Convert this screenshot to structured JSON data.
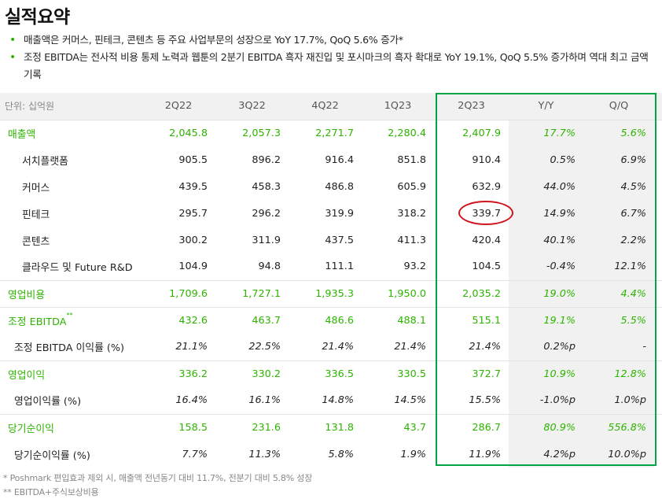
{
  "title": "실적요약",
  "bullets": [
    "매출액은 커머스, 핀테크, 콘텐츠 등 주요 사업부문의 성장으로 YoY 17.7%, QoQ 5.6% 증가*",
    "조정 EBITDA는 전사적 비용 통제 노력과 웹툰의 2분기 EBITDA 흑자 재진입 및 포시마크의 흑자 확대로 YoY 19.1%, QoQ 5.5% 증가하며 역대 최고 금액 기록"
  ],
  "table": {
    "unit": "단위: 십억원",
    "headers": [
      "2Q22",
      "3Q22",
      "4Q22",
      "1Q23",
      "2Q23",
      "Y/Y",
      "Q/Q"
    ],
    "rows": [
      {
        "label": "매출액",
        "sup": "",
        "cells": [
          "2,045.8",
          "2,057.3",
          "2,271.7",
          "2,280.4",
          "2,407.9",
          "17.7%",
          "5.6%"
        ]
      },
      {
        "label": "서치플랫폼",
        "sup": "",
        "cells": [
          "905.5",
          "896.2",
          "916.4",
          "851.8",
          "910.4",
          "0.5%",
          "6.9%"
        ]
      },
      {
        "label": "커머스",
        "sup": "",
        "cells": [
          "439.5",
          "458.3",
          "486.8",
          "605.9",
          "632.9",
          "44.0%",
          "4.5%"
        ]
      },
      {
        "label": "핀테크",
        "sup": "",
        "cells": [
          "295.7",
          "296.2",
          "319.9",
          "318.2",
          "339.7",
          "14.9%",
          "6.7%"
        ]
      },
      {
        "label": "콘텐츠",
        "sup": "",
        "cells": [
          "300.2",
          "311.9",
          "437.5",
          "411.3",
          "420.4",
          "40.1%",
          "2.2%"
        ]
      },
      {
        "label": "클라우드 및 Future R&D",
        "sup": "",
        "cells": [
          "104.9",
          "94.8",
          "111.1",
          "93.2",
          "104.5",
          "-0.4%",
          "12.1%"
        ]
      },
      {
        "label": "영업비용",
        "sup": "",
        "cells": [
          "1,709.6",
          "1,727.1",
          "1,935.3",
          "1,950.0",
          "2,035.2",
          "19.0%",
          "4.4%"
        ]
      },
      {
        "label": "조정 EBITDA",
        "sup": "**",
        "cells": [
          "432.6",
          "463.7",
          "486.6",
          "488.1",
          "515.1",
          "19.1%",
          "5.5%"
        ]
      },
      {
        "label": "조정 EBITDA 이익률 (%)",
        "sup": "",
        "cells": [
          "21.1%",
          "22.5%",
          "21.4%",
          "21.4%",
          "21.4%",
          "0.2%p",
          "-"
        ]
      },
      {
        "label": "영업이익",
        "sup": "",
        "cells": [
          "336.2",
          "330.2",
          "336.5",
          "330.5",
          "372.7",
          "10.9%",
          "12.8%"
        ]
      },
      {
        "label": "영업이익률 (%)",
        "sup": "",
        "cells": [
          "16.4%",
          "16.1%",
          "14.8%",
          "14.5%",
          "15.5%",
          "-1.0%p",
          "1.0%p"
        ]
      },
      {
        "label": "당기순이익",
        "sup": "",
        "cells": [
          "158.5",
          "231.6",
          "131.8",
          "43.7",
          "286.7",
          "80.9%",
          "556.8%"
        ]
      },
      {
        "label": "당기순이익률 (%)",
        "sup": "",
        "cells": [
          "7.7%",
          "11.3%",
          "5.8%",
          "1.9%",
          "11.9%",
          "4.2%p",
          "10.0%p"
        ]
      }
    ]
  },
  "notes": [
    "* Poshmark 편입효과 제외 시, 매출액 전년동기 대비 11.7%, 전분기 대비 5.8% 성장",
    "** EBITDA+주식보상비용"
  ],
  "colors": {
    "accent_green": "#2db400",
    "box_green": "#00a643",
    "circle_red": "#d0141e",
    "shade_gray": "#f1f1f1"
  },
  "icons": {
    "bullet": "green-dot-icon"
  }
}
